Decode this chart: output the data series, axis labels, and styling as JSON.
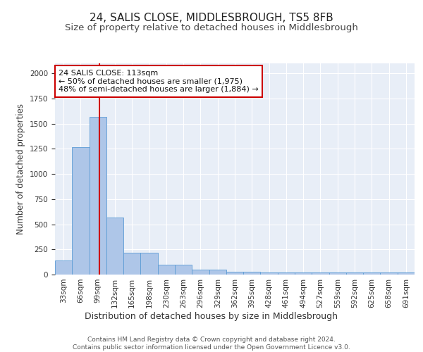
{
  "title": "24, SALIS CLOSE, MIDDLESBROUGH, TS5 8FB",
  "subtitle": "Size of property relative to detached houses in Middlesbrough",
  "xlabel": "Distribution of detached houses by size in Middlesbrough",
  "ylabel": "Number of detached properties",
  "bar_color": "#aec6e8",
  "bar_edge_color": "#5b9bd5",
  "background_color": "#e8eef7",
  "grid_color": "#ffffff",
  "categories": [
    "33sqm",
    "66sqm",
    "99sqm",
    "132sqm",
    "165sqm",
    "198sqm",
    "230sqm",
    "263sqm",
    "296sqm",
    "329sqm",
    "362sqm",
    "395sqm",
    "428sqm",
    "461sqm",
    "494sqm",
    "527sqm",
    "559sqm",
    "592sqm",
    "625sqm",
    "658sqm",
    "691sqm"
  ],
  "values": [
    140,
    1270,
    1570,
    570,
    215,
    215,
    100,
    100,
    50,
    50,
    25,
    25,
    20,
    20,
    20,
    20,
    20,
    20,
    20,
    20,
    20
  ],
  "ylim": [
    0,
    2100
  ],
  "red_line_x": 2.1,
  "annotation_text": "24 SALIS CLOSE: 113sqm\n← 50% of detached houses are smaller (1,975)\n48% of semi-detached houses are larger (1,884) →",
  "annotation_box_color": "#ffffff",
  "annotation_box_edge": "#cc0000",
  "red_line_color": "#cc0000",
  "footer_text": "Contains HM Land Registry data © Crown copyright and database right 2024.\nContains public sector information licensed under the Open Government Licence v3.0.",
  "title_fontsize": 11,
  "subtitle_fontsize": 9.5,
  "ylabel_fontsize": 8.5,
  "xlabel_fontsize": 9,
  "tick_fontsize": 7.5,
  "annotation_fontsize": 8,
  "footer_fontsize": 6.5
}
